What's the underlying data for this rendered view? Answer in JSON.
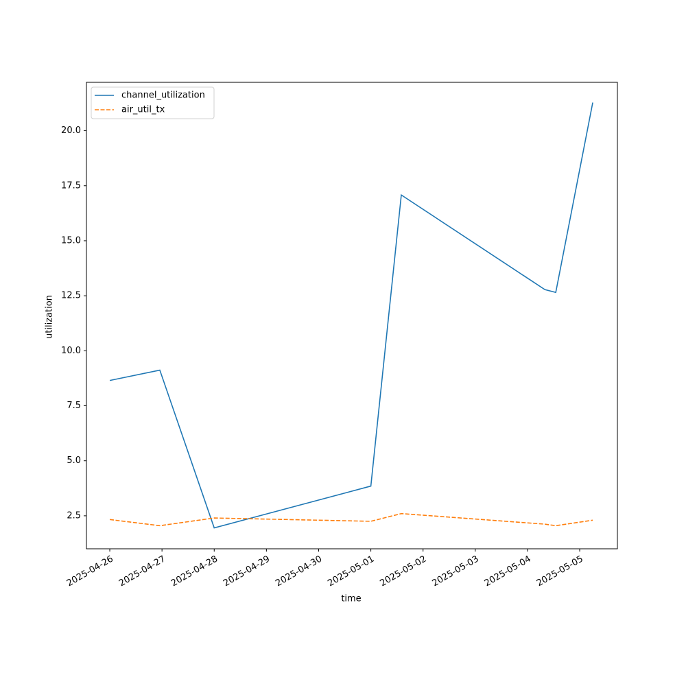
{
  "chart_data": {
    "type": "line",
    "x_label": "time",
    "y_label": "utilization",
    "x": [
      "2025-04-26T00:00",
      "2025-04-26T23:00",
      "2025-04-28T00:00",
      "2025-05-01T00:00",
      "2025-05-01T14:00",
      "2025-05-04T08:00",
      "2025-05-04T13:00",
      "2025-05-05T06:00"
    ],
    "series": [
      {
        "name": "channel_utilization",
        "color": "#1f77b4",
        "dash": "solid",
        "values": [
          8.65,
          9.12,
          1.95,
          3.85,
          17.08,
          12.78,
          12.65,
          21.28
        ]
      },
      {
        "name": "air_util_tx",
        "color": "#ff7f0e",
        "dash": "dashed",
        "values": [
          2.33,
          2.05,
          2.4,
          2.25,
          2.6,
          2.12,
          2.05,
          2.3
        ]
      }
    ],
    "xlim": [
      "2025-04-25T13:16",
      "2025-05-05T17:20"
    ],
    "xticks": [
      "2025-04-26",
      "2025-04-27",
      "2025-04-28",
      "2025-04-29",
      "2025-04-30",
      "2025-05-01",
      "2025-05-02",
      "2025-05-03",
      "2025-05-04",
      "2025-05-05"
    ],
    "ylim": [
      1.0,
      22.2
    ],
    "yticks": [
      2.5,
      {
        "value": 5,
        "label": "5.0"
      },
      7.5,
      {
        "value": 10,
        "label": "10.0"
      },
      12.5,
      {
        "value": 15,
        "label": "15.0"
      },
      17.5,
      {
        "value": 20,
        "label": "20.0"
      }
    ],
    "legend": "upper left",
    "grid": false
  }
}
